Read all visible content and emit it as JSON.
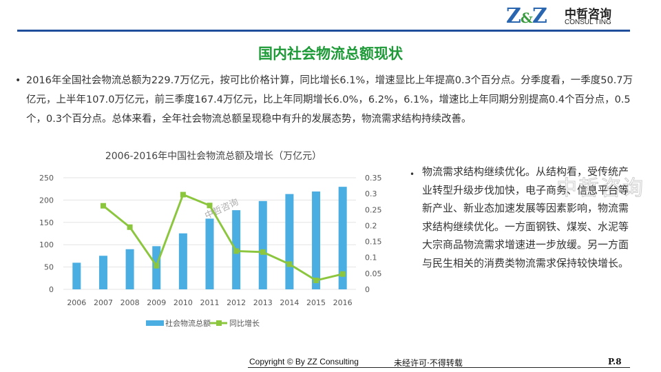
{
  "header": {
    "logo": "Z&Z",
    "brand_cn": "中哲咨询",
    "brand_en": "CONSUL TING"
  },
  "title": "国内社会物流总额现状",
  "paragraph": "2016年全国社会物流总额为229.7万亿元，按可比价格计算，同比增长6.1%，增速显比上年提高0.3个百分点。分季度看，一季度50.7万亿元，上半年107.0万亿元，前三季度167.4万亿元，比上年同期增长6.0%，6.2%，6.1%，增速比上年同期分别提高0.4个百分点，0.5个，0.3个百分点。总体来看，全年社会物流总额呈现稳中有升的发展态势，物流需求结构持续改善。",
  "side_text": "物流需求结构继续优化。从结构看，受传统产业转型升级步伐加快，电子商务、信息平台等新产业、新业态加速发展等因素影响，物流需求结构继续优化。一方面钢铁、煤炭、水泥等大宗商品物流需求增速进一步放缓。另一方面与民生相关的消费类物流需求保持较快增长。",
  "watermark": "中哲咨询",
  "footer": {
    "copyright": "Copyright © By  ZZ Consulting",
    "notice": "未经许可·不得转载",
    "page": "P.8"
  },
  "colors": {
    "bar": "#4aaee2",
    "line": "#8cc63f",
    "title": "#1e9a38",
    "rule": "#1f4e9c"
  },
  "chart_data": {
    "type": "bar",
    "title": "2006-2016年中国社会物流总额及增长（万亿元）",
    "categories": [
      "2006",
      "2007",
      "2008",
      "2009",
      "2010",
      "2011",
      "2012",
      "2013",
      "2014",
      "2015",
      "2016"
    ],
    "series": [
      {
        "name": "社会物流总额",
        "type": "bar",
        "axis": "left",
        "values": [
          59.6,
          75.2,
          89.9,
          96.7,
          125.4,
          158.4,
          177.3,
          197.8,
          213.5,
          219.2,
          229.7
        ]
      },
      {
        "name": "同比增长",
        "type": "line",
        "axis": "right",
        "values": [
          null,
          0.262,
          0.195,
          0.074,
          0.297,
          0.263,
          0.12,
          0.117,
          0.079,
          0.028,
          0.048
        ]
      }
    ],
    "ylim": [
      0,
      250
    ],
    "yticks": [
      "0",
      "50",
      "100",
      "150",
      "200",
      "250"
    ],
    "y2lim": [
      0,
      0.35
    ],
    "y2ticks": [
      "0",
      "0.05",
      "0.1",
      "0.15",
      "0.2",
      "0.25",
      "0.3",
      "0.35"
    ],
    "grid": true,
    "legend": "bottom"
  }
}
